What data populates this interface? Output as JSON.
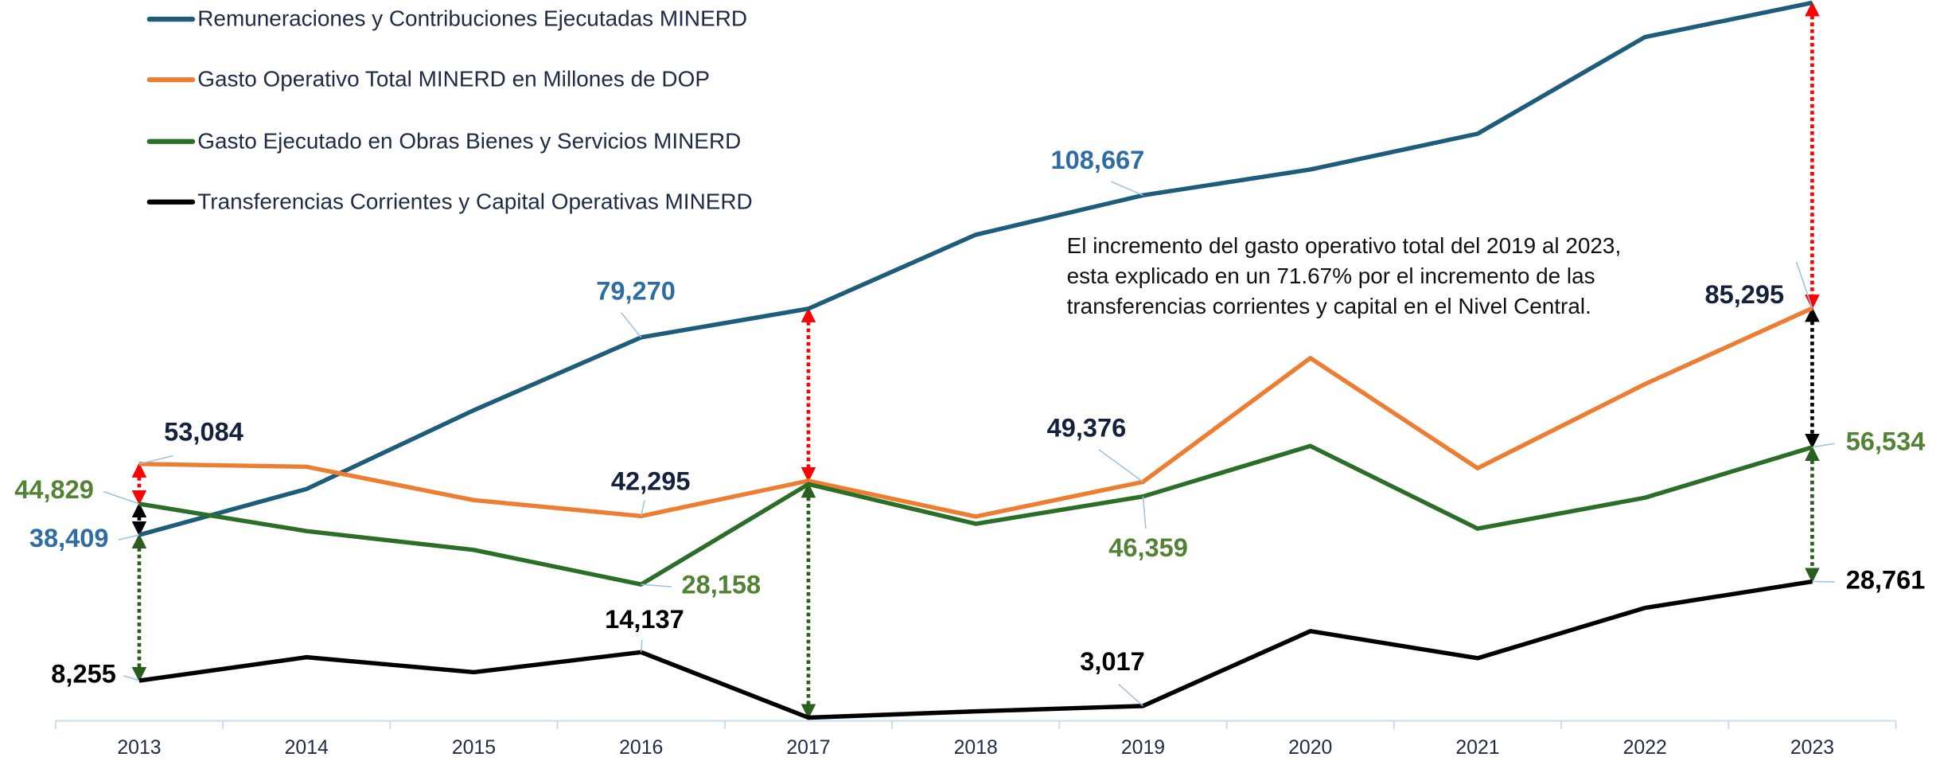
{
  "chart_data": {
    "type": "line",
    "categories": [
      "2013",
      "2014",
      "2015",
      "2016",
      "2017",
      "2018",
      "2019",
      "2020",
      "2021",
      "2022",
      "2023"
    ],
    "ylim": [
      0,
      150000
    ],
    "annotation": [
      "El incremento del gasto operativo total del 2019 al 2023,",
      "esta explicado en un 71.67% por el incremento de las",
      "transferencias corrientes y capital en el Nivel Central."
    ],
    "series": [
      {
        "name": "Remuneraciones y Contribuciones Ejecutadas MINERD",
        "color": "#1d5c7a",
        "label_color": "#2e6da4",
        "values": [
          38409,
          47900,
          64200,
          79270,
          85200,
          100500,
          108667,
          114000,
          121400,
          141400,
          148500
        ],
        "value_labels": [
          "38,409",
          null,
          null,
          "79,270",
          null,
          null,
          "108,667",
          null,
          null,
          null,
          null
        ]
      },
      {
        "name": "Gasto Operativo Total MINERD en Millones de DOP",
        "color": "#ed7d31",
        "label_color": "#13213d",
        "values": [
          53084,
          52500,
          45600,
          42295,
          49600,
          42200,
          49376,
          75000,
          52200,
          69600,
          85295
        ],
        "value_labels": [
          "53,084",
          null,
          null,
          "42,295",
          null,
          null,
          "49,376",
          null,
          null,
          null,
          "85,295"
        ]
      },
      {
        "name": "Gasto Ejecutado en Obras Bienes y Servicios MINERD",
        "color": "#2a6e27",
        "label_color": "#548235",
        "values": [
          44829,
          39200,
          35300,
          28158,
          48900,
          40700,
          46359,
          56800,
          39700,
          46100,
          56534
        ],
        "value_labels": [
          "44,829",
          null,
          null,
          "28,158",
          null,
          null,
          "46,359",
          null,
          null,
          null,
          "56,534"
        ]
      },
      {
        "name": "Transferencias Corrientes y Capital Operativas MINERD",
        "color": "#000000",
        "label_color": "#000000",
        "values": [
          8255,
          13100,
          10000,
          14137,
          600,
          1900,
          3017,
          18500,
          12900,
          23300,
          28761
        ],
        "value_labels": [
          "8,255",
          null,
          null,
          "14,137",
          null,
          null,
          "3,017",
          null,
          null,
          null,
          "28,761"
        ]
      }
    ]
  }
}
